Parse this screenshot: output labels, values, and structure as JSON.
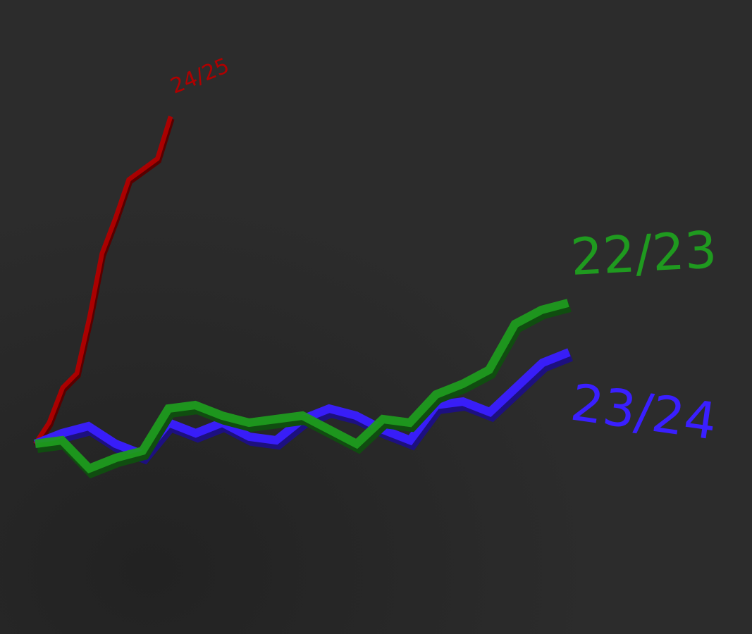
{
  "chart_data": {
    "type": "line",
    "x": [
      0,
      1,
      2,
      3,
      4,
      5,
      6,
      7,
      8,
      9,
      10,
      11,
      12,
      13,
      14,
      15,
      16,
      17,
      18,
      19,
      20
    ],
    "series": [
      {
        "name": "22/23",
        "color": "#1f9a1f",
        "values": [
          0,
          5,
          -35,
          -20,
          -10,
          50,
          55,
          40,
          30,
          35,
          40,
          20,
          0,
          35,
          30,
          70,
          85,
          105,
          170,
          190,
          200
        ]
      },
      {
        "name": "23/24",
        "color": "#3a1fff",
        "values": [
          0,
          15,
          25,
          0,
          -15,
          30,
          15,
          30,
          10,
          5,
          35,
          50,
          40,
          20,
          5,
          55,
          60,
          45,
          80,
          115,
          130
        ]
      },
      {
        "name": "24/25",
        "color": "#b00000",
        "values": [
          0,
          55,
          145,
          182,
          327,
          491,
          582,
          682,
          709,
          736,
          845,
          null,
          null,
          null,
          null,
          null,
          null,
          null,
          null,
          null,
          null
        ]
      }
    ]
  }
}
